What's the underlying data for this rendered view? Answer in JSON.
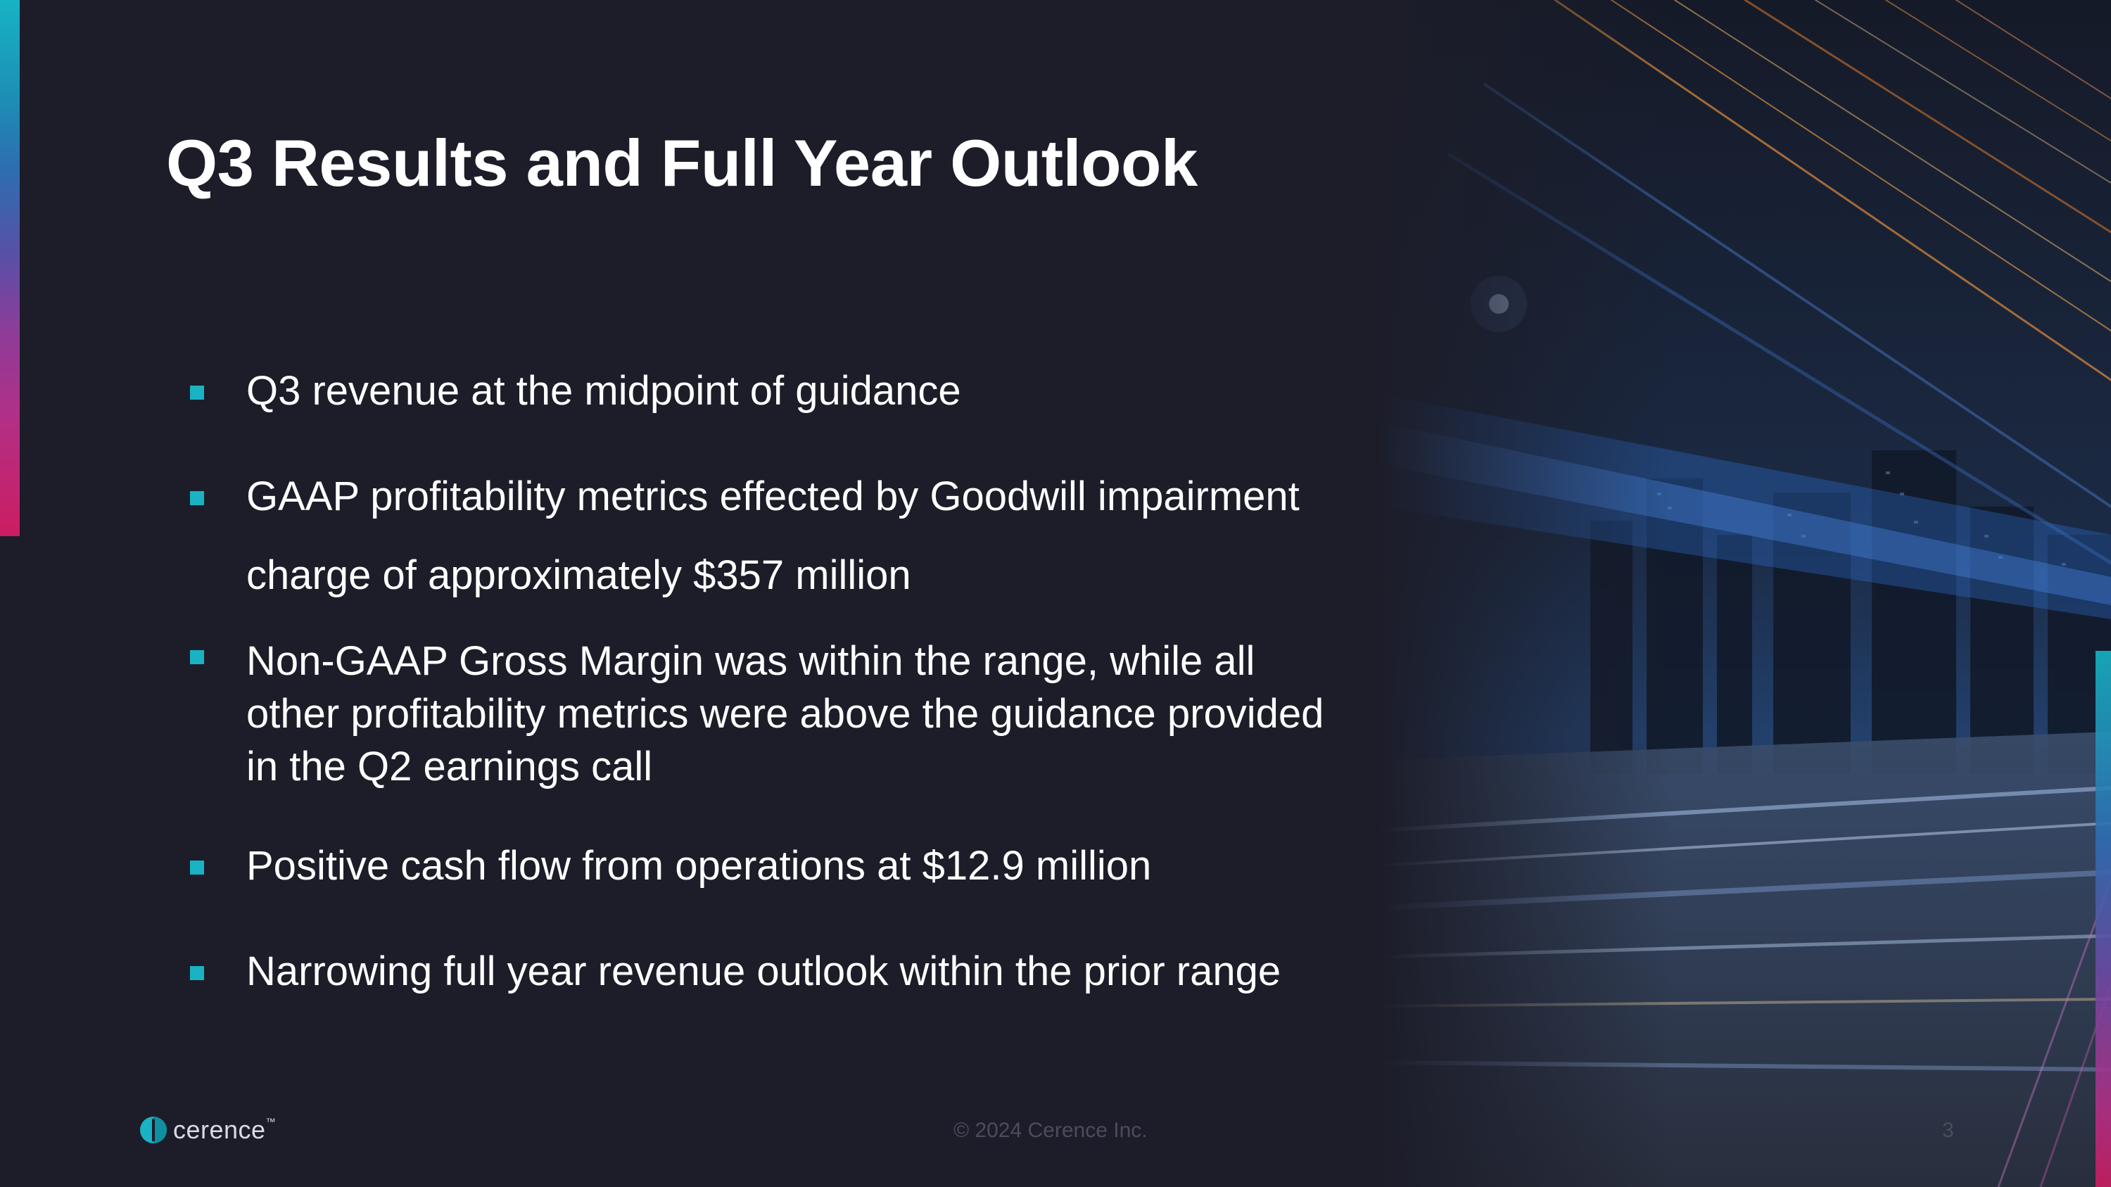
{
  "slide": {
    "title": "Q3 Results and Full Year Outlook",
    "bullets": [
      "Q3 revenue at the midpoint of guidance",
      "GAAP profitability metrics effected by Goodwill impairment\ncharge of approximately $357 million",
      "Non-GAAP Gross Margin was within the range, while all\nother profitability metrics were above the guidance provided\nin the Q2 earnings call",
      "Positive cash flow from operations at $12.9 million",
      "Narrowing full year revenue outlook within the prior range"
    ],
    "footer": {
      "logo_text": "cerence",
      "logo_mark": "™",
      "copyright": "© 2024 Cerence Inc.",
      "page_number": "3"
    }
  },
  "colors": {
    "background": "#1c1d29",
    "bullet_marker": "#19b3c3",
    "text": "#ffffff",
    "footer_text": "#4a4d5e",
    "accent_top": "#17b3c4",
    "accent_bottom": "#cc1d61"
  },
  "icons": {
    "bullet": "square-bullet-icon",
    "logo": "cerence-logo-icon"
  }
}
